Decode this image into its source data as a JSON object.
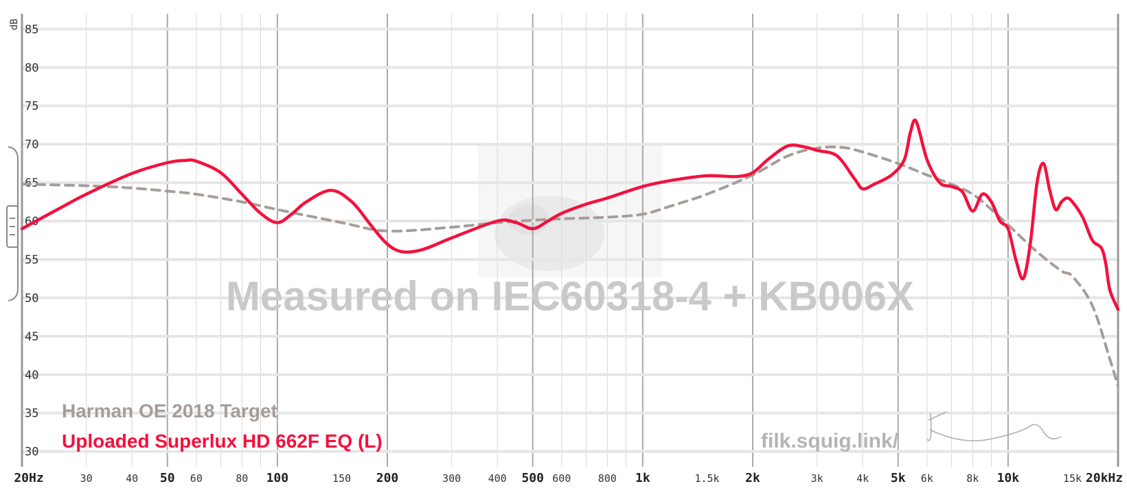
{
  "chart_data": {
    "type": "line",
    "xscale": "log",
    "xlim": [
      20,
      20000
    ],
    "ylim": [
      28,
      87
    ],
    "y_unit": "dB",
    "yticks": [
      30,
      35,
      40,
      45,
      50,
      55,
      60,
      65,
      70,
      75,
      80,
      85
    ],
    "xticks": [
      {
        "value": 20,
        "label": "20Hz",
        "major": true
      },
      {
        "value": 30,
        "label": "30",
        "major": false
      },
      {
        "value": 40,
        "label": "40",
        "major": false
      },
      {
        "value": 50,
        "label": "50",
        "major": true
      },
      {
        "value": 60,
        "label": "60",
        "major": false
      },
      {
        "value": 80,
        "label": "80",
        "major": false
      },
      {
        "value": 100,
        "label": "100",
        "major": true
      },
      {
        "value": 150,
        "label": "150",
        "major": false
      },
      {
        "value": 200,
        "label": "200",
        "major": true
      },
      {
        "value": 300,
        "label": "300",
        "major": false
      },
      {
        "value": 400,
        "label": "400",
        "major": false
      },
      {
        "value": 500,
        "label": "500",
        "major": true
      },
      {
        "value": 600,
        "label": "600",
        "major": false
      },
      {
        "value": 800,
        "label": "800",
        "major": false
      },
      {
        "value": 1000,
        "label": "1k",
        "major": true
      },
      {
        "value": 1500,
        "label": "1.5k",
        "major": false
      },
      {
        "value": 2000,
        "label": "2k",
        "major": true
      },
      {
        "value": 3000,
        "label": "3k",
        "major": false
      },
      {
        "value": 4000,
        "label": "4k",
        "major": false
      },
      {
        "value": 5000,
        "label": "5k",
        "major": true
      },
      {
        "value": 6000,
        "label": "6k",
        "major": false
      },
      {
        "value": 8000,
        "label": "8k",
        "major": false
      },
      {
        "value": 10000,
        "label": "10k",
        "major": true
      },
      {
        "value": 15000,
        "label": "15k",
        "major": false
      },
      {
        "value": 20000,
        "label": "20kHz",
        "major": true
      }
    ],
    "grid": true,
    "watermark": "Measured on IEC60318-4 + KB006X",
    "credit": "filk.squig.link/",
    "series": [
      {
        "name": "Harman OE 2018 Target",
        "color": "#a69d99",
        "style": "dashed",
        "x": [
          20,
          30,
          40,
          50,
          60,
          80,
          100,
          150,
          200,
          300,
          400,
          500,
          600,
          800,
          1000,
          1200,
          1500,
          2000,
          2500,
          3000,
          3500,
          4000,
          5000,
          6000,
          7000,
          8000,
          9000,
          10000,
          12000,
          14000,
          15000,
          17000,
          19000,
          20000
        ],
        "y": [
          64.8,
          64.6,
          64.3,
          63.9,
          63.5,
          62.5,
          61.5,
          59.8,
          58.7,
          59.2,
          59.8,
          60.1,
          60.3,
          60.5,
          60.9,
          62.0,
          63.5,
          66.0,
          68.5,
          69.5,
          69.6,
          69.0,
          67.5,
          66.0,
          64.8,
          63.5,
          61.5,
          59.5,
          56.0,
          53.5,
          52.8,
          49.0,
          42.0,
          38.5
        ]
      },
      {
        "name": "Uploaded Superlux HD 662F EQ (L)",
        "color": "#f5103d",
        "style": "solid",
        "x": [
          20,
          25,
          30,
          40,
          50,
          56,
          60,
          70,
          80,
          90,
          100,
          110,
          120,
          140,
          160,
          180,
          200,
          220,
          250,
          300,
          400,
          450,
          500,
          550,
          600,
          700,
          800,
          1000,
          1200,
          1500,
          1800,
          2000,
          2200,
          2500,
          2800,
          3000,
          3400,
          3800,
          4000,
          4300,
          4800,
          5200,
          5400,
          5600,
          6000,
          6500,
          7000,
          7500,
          8000,
          8500,
          9000,
          9500,
          10000,
          10500,
          11000,
          11500,
          12000,
          12500,
          13000,
          13500,
          14000,
          14500,
          15000,
          16000,
          17000,
          18000,
          18500,
          19000,
          20000
        ],
        "y": [
          59.0,
          61.5,
          63.5,
          66.2,
          67.6,
          67.9,
          67.8,
          66.3,
          63.5,
          61.0,
          59.8,
          61.0,
          62.5,
          64.0,
          62.5,
          59.5,
          57.0,
          56.0,
          56.3,
          57.8,
          60.0,
          59.8,
          59.0,
          60.0,
          61.0,
          62.2,
          63.0,
          64.5,
          65.3,
          65.9,
          65.8,
          66.3,
          68.0,
          69.8,
          69.6,
          69.2,
          68.5,
          65.5,
          64.2,
          64.8,
          66.0,
          68.0,
          71.5,
          73.0,
          68.0,
          65.0,
          64.5,
          63.8,
          61.3,
          63.5,
          62.5,
          60.0,
          59.0,
          55.0,
          52.5,
          57.0,
          65.0,
          67.5,
          64.0,
          61.5,
          62.5,
          63.0,
          62.5,
          60.5,
          57.5,
          56.5,
          54.5,
          51.0,
          48.5
        ]
      }
    ]
  }
}
